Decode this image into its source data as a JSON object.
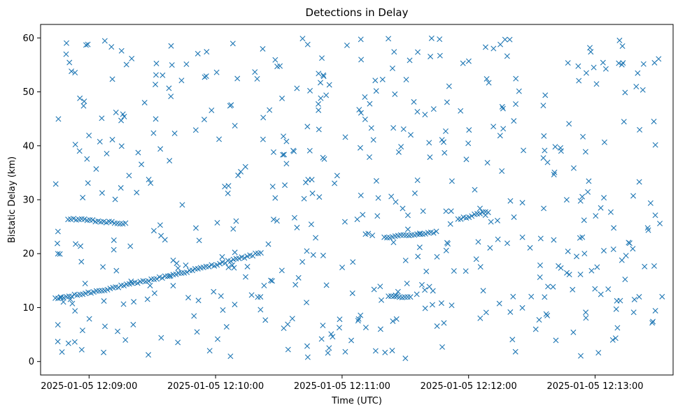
{
  "chart_data": {
    "type": "scatter",
    "title": "Detections in Delay",
    "xlabel": "Time (UTC)",
    "ylabel": "Bistatic Delay (km)",
    "x_tick_labels": [
      "2025-01-05 12:09:00",
      "2025-01-05 12:10:00",
      "2025-01-05 12:11:00",
      "2025-01-05 12:12:00",
      "2025-01-05 12:13:00"
    ],
    "y_ticks": [
      0,
      10,
      20,
      30,
      40,
      50,
      60
    ],
    "xlim": [
      "2025-01-05 12:08:37",
      "2025-01-05 12:13:37"
    ],
    "ylim": [
      -2.5,
      62.5
    ],
    "grid": false,
    "legend": "none",
    "marker": "x",
    "color": "#1f77b4",
    "time_start": "2025-01-05 12:08:44",
    "time_end": "2025-01-05 12:13:32",
    "tracks": [
      {
        "t0": "2025-01-05 12:08:44",
        "t1": "2025-01-05 12:10:22",
        "y0": 11.6,
        "y1": 20.2,
        "curve": 1.0
      },
      {
        "t0": "2025-01-05 12:08:50",
        "t1": "2025-01-05 12:09:18",
        "y0": 26.5,
        "y1": 25.5,
        "curve": 0
      },
      {
        "t0": "2025-01-05 12:10:20",
        "t1": "2025-01-05 12:10:22",
        "y0": 11.8,
        "y1": 12.0,
        "curve": 0
      },
      {
        "t0": "2025-01-05 12:11:20",
        "t1": "2025-01-05 12:11:45",
        "y0": 23.0,
        "y1": 24.0,
        "curve": 0
      },
      {
        "t0": "2025-01-05 12:11:22",
        "t1": "2025-01-05 12:11:33",
        "y0": 12.0,
        "y1": 12.0,
        "curve": 0
      },
      {
        "t0": "2025-01-05 12:11:55",
        "t1": "2025-01-05 12:12:10",
        "y0": 26.3,
        "y1": 27.9,
        "curve": 0
      }
    ],
    "track_gaps": [
      [
        "2025-01-05 12:09:36",
        "2025-01-05 12:09:46"
      ],
      [
        "2025-01-05 12:10:22",
        "2025-01-05 12:11:20"
      ],
      [
        "2025-01-05 12:11:45",
        "2025-01-05 12:11:55"
      ]
    ],
    "noise_points_note": "scattered false detections across full range"
  }
}
